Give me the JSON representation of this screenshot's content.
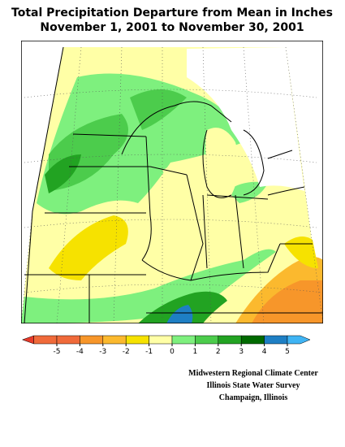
{
  "title": [
    "Total Precipitation Departure from Mean in Inches",
    "November 1, 2001 to November 30, 2001"
  ],
  "legend": {
    "colors": [
      "#e83a2a",
      "#f06a3a",
      "#f7962a",
      "#fbb92e",
      "#f6e200",
      "#ffffa6",
      "#7ef07e",
      "#4ccc4c",
      "#22a322",
      "#006a00",
      "#1e7fc4",
      "#3fb4f4"
    ],
    "ticks": [
      -5,
      -4,
      -3,
      -2,
      -1,
      0,
      1,
      2,
      3,
      4,
      5
    ]
  },
  "credits": [
    "Midwestern Regional Climate Center",
    "Illinois State Water Survey",
    "Champaign, Illinois"
  ]
}
